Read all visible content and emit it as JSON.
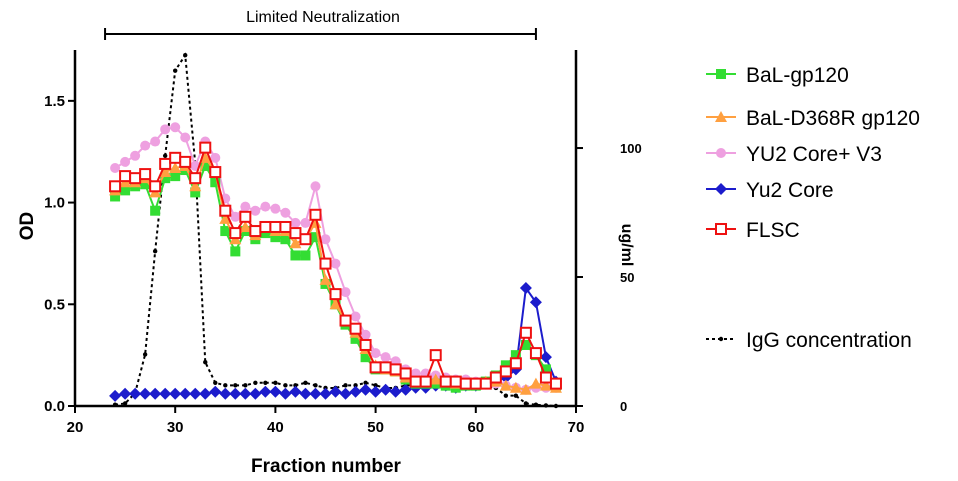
{
  "chart_data": {
    "type": "line",
    "annotation": "Limited Neutralization",
    "annotation_range": [
      23,
      66
    ],
    "xlabel": "Fraction number",
    "ylabel": "OD",
    "y2label": "ug/ml",
    "xlim": [
      20,
      70
    ],
    "ylim": [
      0,
      1.75
    ],
    "y2lim": [
      0,
      138
    ],
    "xticks": [
      "20",
      "30",
      "40",
      "50",
      "60",
      "70"
    ],
    "xtick_values": [
      20,
      30,
      40,
      50,
      60,
      70
    ],
    "yticks": [
      "0.0",
      "0.5",
      "1.0",
      "1.5"
    ],
    "ytick_values": [
      0,
      0.5,
      1.0,
      1.5
    ],
    "y2ticks": [
      "0",
      "50",
      "100"
    ],
    "y2tick_values": [
      0,
      50,
      100
    ],
    "legend_position": "right",
    "grid": false,
    "x": [
      24,
      25,
      26,
      27,
      28,
      29,
      30,
      31,
      32,
      33,
      34,
      35,
      36,
      37,
      38,
      39,
      40,
      41,
      42,
      43,
      44,
      45,
      46,
      47,
      48,
      49,
      50,
      51,
      52,
      53,
      54,
      55,
      56,
      57,
      58,
      59,
      60,
      61,
      62,
      63,
      64,
      65,
      66,
      67,
      68
    ],
    "series": [
      {
        "name": "BaL-gp120",
        "color": "#33dd33",
        "marker": "square",
        "axis": "left",
        "values": [
          1.03,
          1.06,
          1.08,
          1.09,
          0.96,
          1.12,
          1.13,
          1.16,
          1.05,
          1.18,
          1.1,
          0.86,
          0.76,
          0.86,
          0.82,
          0.85,
          0.83,
          0.82,
          0.74,
          0.74,
          0.83,
          0.6,
          0.5,
          0.4,
          0.33,
          0.24,
          0.18,
          0.18,
          0.17,
          0.13,
          0.11,
          0.11,
          0.11,
          0.1,
          0.09,
          0.1,
          0.1,
          0.12,
          0.15,
          0.2,
          0.25,
          0.3,
          0.25,
          0.18,
          0.1
        ]
      },
      {
        "name": "BaL-D368R gp120",
        "color": "#ffa040",
        "marker": "triangle",
        "axis": "left",
        "values": [
          1.06,
          1.1,
          1.1,
          1.12,
          1.05,
          1.15,
          1.17,
          1.18,
          1.08,
          1.22,
          1.15,
          0.92,
          0.82,
          0.88,
          0.84,
          0.88,
          0.86,
          0.86,
          0.8,
          0.82,
          0.9,
          0.62,
          0.5,
          0.42,
          0.36,
          0.28,
          0.2,
          0.18,
          0.17,
          0.14,
          0.12,
          0.12,
          0.13,
          0.12,
          0.11,
          0.11,
          0.11,
          0.12,
          0.12,
          0.1,
          0.09,
          0.08,
          0.11,
          0.1,
          0.09
        ]
      },
      {
        "name": "YU2 Core+ V3",
        "color": "#eea0e0",
        "marker": "circle",
        "axis": "left",
        "values": [
          1.17,
          1.2,
          1.23,
          1.28,
          1.3,
          1.36,
          1.37,
          1.32,
          1.18,
          1.3,
          1.22,
          1.02,
          0.93,
          0.98,
          0.96,
          0.98,
          0.97,
          0.95,
          0.9,
          0.9,
          1.08,
          0.82,
          0.7,
          0.56,
          0.44,
          0.35,
          0.26,
          0.24,
          0.22,
          0.18,
          0.16,
          0.16,
          0.15,
          0.14,
          0.13,
          0.13,
          0.12,
          0.12,
          0.11,
          0.1,
          0.09,
          0.08,
          0.09,
          0.09,
          0.09
        ]
      },
      {
        "name": "Yu2 Core",
        "color": "#1c1ccc",
        "marker": "diamond",
        "axis": "left",
        "values": [
          0.05,
          0.06,
          0.06,
          0.06,
          0.06,
          0.06,
          0.06,
          0.06,
          0.06,
          0.06,
          0.07,
          0.06,
          0.06,
          0.06,
          0.06,
          0.07,
          0.07,
          0.06,
          0.07,
          0.06,
          0.06,
          0.06,
          0.07,
          0.06,
          0.07,
          0.08,
          0.07,
          0.08,
          0.07,
          0.08,
          0.09,
          0.09,
          0.1,
          0.1,
          0.09,
          0.1,
          0.1,
          0.11,
          0.12,
          0.14,
          0.18,
          0.58,
          0.51,
          0.24,
          0.12
        ]
      },
      {
        "name": "FLSC",
        "color": "#ee1111",
        "marker": "square-open",
        "axis": "left",
        "values": [
          1.08,
          1.13,
          1.12,
          1.14,
          1.08,
          1.19,
          1.22,
          1.2,
          1.12,
          1.27,
          1.15,
          0.96,
          0.85,
          0.93,
          0.86,
          0.88,
          0.88,
          0.88,
          0.85,
          0.82,
          0.94,
          0.7,
          0.55,
          0.42,
          0.38,
          0.3,
          0.19,
          0.19,
          0.18,
          0.16,
          0.12,
          0.12,
          0.25,
          0.12,
          0.12,
          0.11,
          0.11,
          0.11,
          0.14,
          0.17,
          0.21,
          0.36,
          0.26,
          0.14,
          0.11
        ]
      },
      {
        "name": "IgG concentration",
        "color": "#000000",
        "marker": "dot",
        "axis": "right",
        "dashed": true,
        "values": [
          0.5,
          1,
          5,
          20,
          60,
          97,
          130,
          136,
          94,
          17,
          9,
          8,
          8,
          8,
          9,
          9,
          9,
          8,
          8,
          9,
          8,
          7,
          7,
          8,
          8,
          9,
          8,
          7,
          7,
          8,
          8,
          7,
          8,
          7,
          7,
          8,
          8,
          8,
          7,
          4,
          4,
          1,
          0.5,
          0.2,
          0
        ]
      }
    ]
  }
}
